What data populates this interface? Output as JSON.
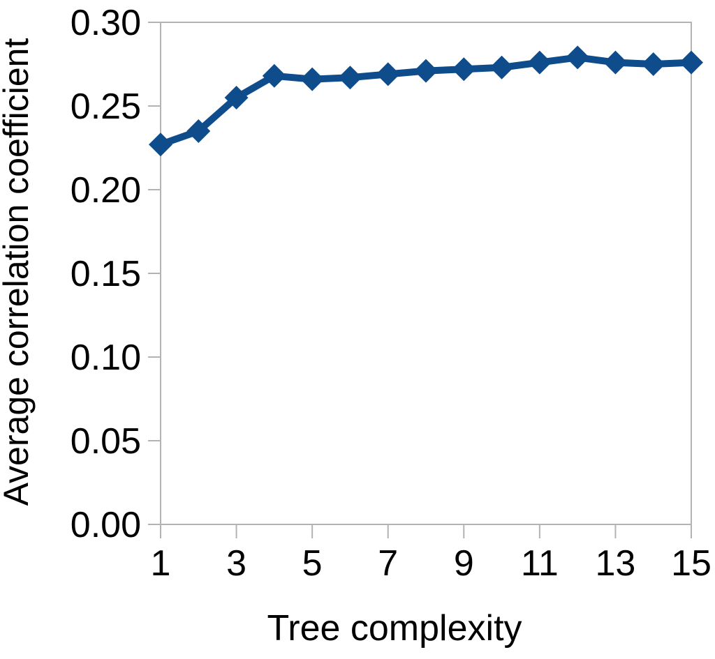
{
  "chart_data": {
    "type": "line",
    "title": "",
    "xlabel": "Tree complexity",
    "ylabel": "Average correlation coefficient",
    "x": [
      1,
      2,
      3,
      4,
      5,
      6,
      7,
      8,
      9,
      10,
      11,
      12,
      13,
      14,
      15
    ],
    "series": [
      {
        "name": "Average correlation coefficient",
        "values": [
          0.227,
          0.235,
          0.255,
          0.268,
          0.266,
          0.267,
          0.269,
          0.271,
          0.272,
          0.273,
          0.276,
          0.279,
          0.276,
          0.275,
          0.276
        ]
      }
    ],
    "xlim": [
      1,
      15
    ],
    "ylim": [
      0.0,
      0.3
    ],
    "y_ticks": [
      {
        "v": 0.3,
        "label": "0.30"
      },
      {
        "v": 0.25,
        "label": "0.25"
      },
      {
        "v": 0.2,
        "label": "0.20"
      },
      {
        "v": 0.15,
        "label": "0.15"
      },
      {
        "v": 0.1,
        "label": "0.10"
      },
      {
        "v": 0.05,
        "label": "0.05"
      },
      {
        "v": 0.0,
        "label": "0.00"
      }
    ],
    "x_ticks": [
      {
        "v": 1,
        "label": "1"
      },
      {
        "v": 3,
        "label": "3"
      },
      {
        "v": 5,
        "label": "5"
      },
      {
        "v": 7,
        "label": "7"
      },
      {
        "v": 9,
        "label": "9"
      },
      {
        "v": 11,
        "label": "11"
      },
      {
        "v": 13,
        "label": "13"
      },
      {
        "v": 15,
        "label": "15"
      }
    ],
    "grid": false,
    "legend": "none",
    "marker": "diamond",
    "line_color": "#0e4c8c",
    "axis_color": "#b3b3b3",
    "text_color": "#000000",
    "background_color": "#ffffff"
  }
}
